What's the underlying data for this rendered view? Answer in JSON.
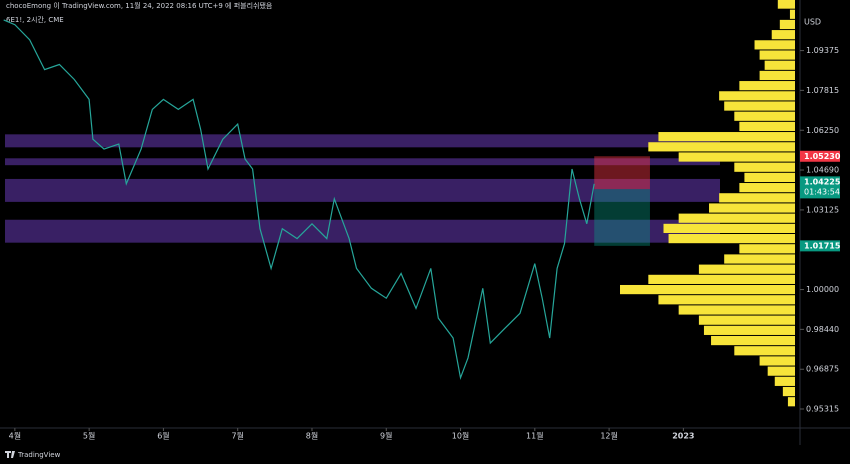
{
  "header": {
    "attribution": "chocoEmong 이 TradingView.com, 11월 24, 2022 08:16 UTC+9 에 퍼블리쉬됐음",
    "symbol": "6E1!, 2시간, CME",
    "currency": "USD",
    "brand": "TradingView"
  },
  "chart_data": {
    "type": "line",
    "color": "#26a69a",
    "x": [
      3.85,
      4.0,
      4.2,
      4.4,
      4.6,
      4.8,
      5.0,
      5.05,
      5.2,
      5.4,
      5.5,
      5.7,
      5.85,
      6.0,
      6.2,
      6.4,
      6.5,
      6.6,
      6.8,
      7.0,
      7.1,
      7.2,
      7.3,
      7.45,
      7.6,
      7.8,
      8.0,
      8.2,
      8.3,
      8.5,
      8.6,
      8.8,
      9.0,
      9.2,
      9.4,
      9.6,
      9.7,
      9.9,
      10.0,
      10.1,
      10.3,
      10.4,
      10.6,
      10.8,
      11.0,
      11.1,
      11.2,
      11.3,
      11.4,
      11.5,
      11.6,
      11.7,
      11.8
    ],
    "values": [
      1.1058,
      1.1039,
      1.098,
      1.0863,
      1.0883,
      1.0824,
      1.0746,
      1.059,
      1.0551,
      1.0571,
      1.0415,
      1.0551,
      1.0707,
      1.0746,
      1.0707,
      1.0746,
      1.0629,
      1.0473,
      1.059,
      1.0649,
      1.0512,
      1.0473,
      1.0239,
      1.0083,
      1.0239,
      1.02,
      1.0258,
      1.02,
      1.0356,
      1.02,
      1.0083,
      1.0005,
      0.9966,
      1.0063,
      0.9926,
      1.0083,
      0.9888,
      0.981,
      0.9654,
      0.9732,
      1.0005,
      0.979,
      0.9849,
      0.9907,
      1.0102,
      0.9966,
      0.981,
      1.0083,
      1.018,
      1.0473,
      1.0356,
      1.0258,
      1.0415
    ],
    "xlim": [
      3.8,
      14.57
    ],
    "xticks": [
      {
        "value": 4,
        "label": "4월"
      },
      {
        "value": 5,
        "label": "5월"
      },
      {
        "value": 6,
        "label": "6월"
      },
      {
        "value": 7,
        "label": "7월"
      },
      {
        "value": 8,
        "label": "8월"
      },
      {
        "value": 9,
        "label": "9월"
      },
      {
        "value": 10,
        "label": "10월"
      },
      {
        "value": 11,
        "label": "11월"
      },
      {
        "value": 12,
        "label": "12월"
      },
      {
        "value": 13,
        "label": "2023"
      }
    ],
    "ylim": [
      0.9457,
      1.1136
    ],
    "yticks": [
      1.09375,
      1.07815,
      {
        "value": 1.0625,
        "label": "1.06250"
      },
      {
        "value": 1.0469,
        "label": "1.04690"
      },
      1.03125,
      {
        "value": 1.0,
        "label": "1.00000"
      },
      {
        "value": 0.9844,
        "label": "0.98440"
      },
      0.96875,
      0.95315
    ],
    "zones": [
      [
        1.0609,
        1.0558
      ],
      [
        1.0515,
        1.0488
      ],
      [
        1.0434,
        1.0344
      ],
      [
        1.0274,
        1.0184
      ]
    ],
    "zone_color": "rgba(103,58,183,0.55)",
    "position": {
      "x": [
        11.8,
        12.55
      ],
      "stop": 1.0523,
      "entry": 1.0394,
      "target": 1.01715
    },
    "profile": {
      "color": "#f7e43a",
      "prices": [
        1.112,
        1.108,
        1.104,
        1.1,
        1.096,
        1.092,
        1.088,
        1.084,
        1.08,
        1.076,
        1.072,
        1.068,
        1.064,
        1.06,
        1.056,
        1.052,
        1.048,
        1.044,
        1.04,
        1.036,
        1.032,
        1.028,
        1.024,
        1.02,
        1.016,
        1.012,
        1.008,
        1.004,
        1.0,
        0.996,
        0.992,
        0.988,
        0.984,
        0.98,
        0.976,
        0.972,
        0.968,
        0.964,
        0.96,
        0.956
      ],
      "volumes": [
        17,
        5,
        15,
        23,
        40,
        35,
        30,
        35,
        55,
        75,
        70,
        60,
        55,
        135,
        145,
        115,
        60,
        50,
        55,
        75,
        85,
        115,
        130,
        125,
        55,
        70,
        95,
        145,
        173,
        135,
        115,
        95,
        90,
        83,
        60,
        35,
        27,
        20,
        12,
        7
      ]
    },
    "price_labels": [
      {
        "value": 1.0523,
        "label": "1.05230",
        "color": "#f23645"
      },
      {
        "value": 1.04225,
        "label": "1.04225",
        "sub": "01:43:54",
        "color": "#089981"
      },
      {
        "value": 1.01715,
        "label": "1.01715",
        "color": "#089981"
      }
    ]
  }
}
